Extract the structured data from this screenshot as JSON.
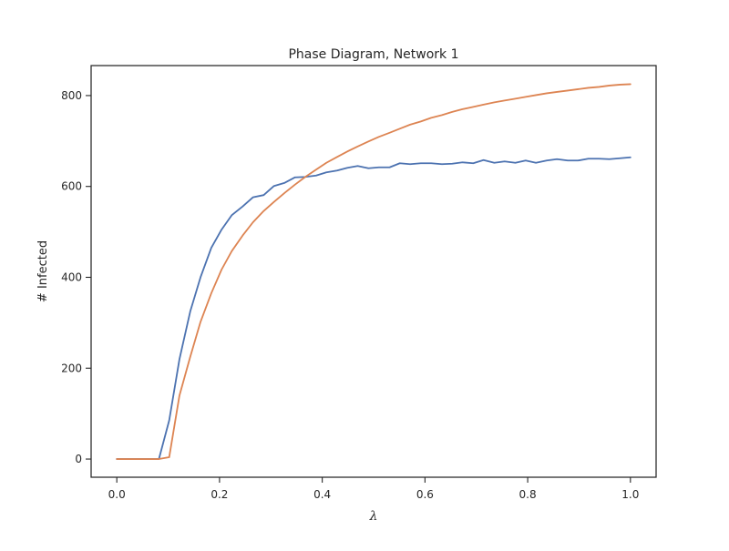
{
  "chart_data": {
    "type": "line",
    "title": "Phase Diagram, Network 1",
    "xlabel": "λ",
    "ylabel": "# Infected",
    "xlim": [
      -0.05,
      1.05
    ],
    "ylim": [
      -40,
      866
    ],
    "xticks": [
      0.0,
      0.2,
      0.4,
      0.6,
      0.8,
      1.0
    ],
    "xtick_labels": [
      "0.0",
      "0.2",
      "0.4",
      "0.6",
      "0.8",
      "1.0"
    ],
    "yticks": [
      0,
      200,
      400,
      600,
      800
    ],
    "ytick_labels": [
      "0",
      "200",
      "400",
      "600",
      "800"
    ],
    "grid": false,
    "legend": "none",
    "x": [
      0.0,
      0.02,
      0.041,
      0.061,
      0.082,
      0.102,
      0.122,
      0.143,
      0.163,
      0.184,
      0.204,
      0.224,
      0.245,
      0.265,
      0.286,
      0.306,
      0.327,
      0.347,
      0.367,
      0.388,
      0.408,
      0.429,
      0.449,
      0.469,
      0.49,
      0.51,
      0.531,
      0.551,
      0.571,
      0.592,
      0.612,
      0.633,
      0.653,
      0.673,
      0.694,
      0.714,
      0.735,
      0.755,
      0.776,
      0.796,
      0.816,
      0.837,
      0.857,
      0.878,
      0.898,
      0.918,
      0.939,
      0.959,
      0.98,
      1.0
    ],
    "series": [
      {
        "color": "#4c72b0",
        "values": [
          0,
          0,
          0,
          0,
          0,
          85,
          220,
          325,
          400,
          465,
          505,
          537,
          556,
          576,
          581,
          601,
          608,
          620,
          621,
          624,
          631,
          635,
          641,
          645,
          640,
          642,
          642,
          651,
          649,
          651,
          651,
          649,
          650,
          653,
          651,
          658,
          652,
          655,
          652,
          657,
          652,
          657,
          660,
          657,
          657,
          661,
          661,
          660,
          662,
          664
        ]
      },
      {
        "color": "#dd8452",
        "values": [
          0,
          0,
          0,
          0,
          0,
          4,
          140,
          225,
          302,
          365,
          417,
          458,
          492,
          521,
          546,
          566,
          586,
          604,
          621,
          637,
          652,
          665,
          677,
          688,
          699,
          709,
          718,
          727,
          736,
          743,
          751,
          757,
          764,
          770,
          775,
          780,
          785,
          789,
          793,
          797,
          801,
          805,
          808,
          811,
          814,
          817,
          819,
          822,
          824,
          825
        ]
      }
    ]
  }
}
